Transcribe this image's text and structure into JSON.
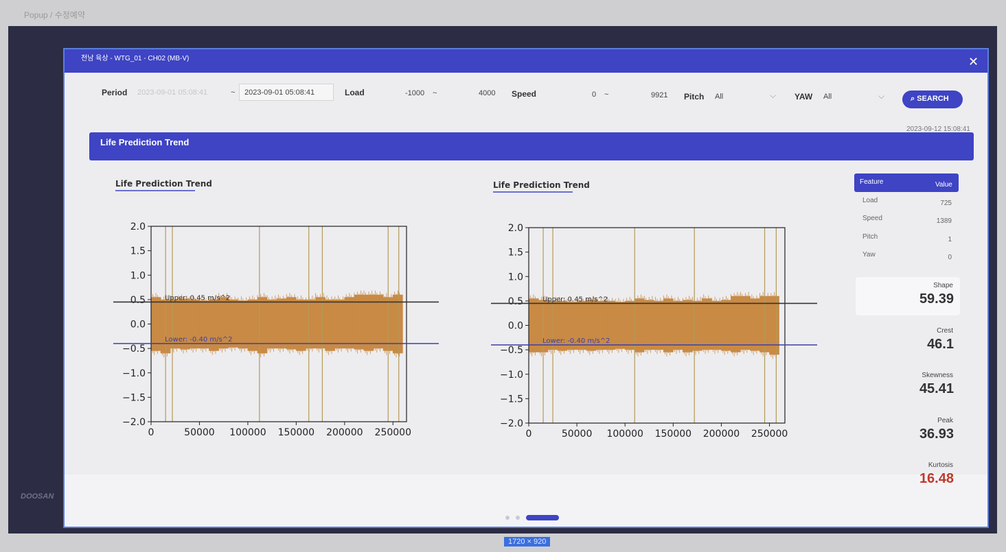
{
  "breadcrumb": "Popup / 수정예약",
  "brand": "DOOSAN",
  "popup": {
    "title": "전남 육상 - WTG_01 - CH02 (MB-V)",
    "size_label": "1720 × 920"
  },
  "filters": {
    "period_label": "Period",
    "period_from": "2023-09-01 05:08:41",
    "period_sep": "~",
    "period_to": "2023-09-01 05:08:41",
    "load_label": "Load",
    "load_min": "-1000",
    "load_sep": "~",
    "load_max": "4000",
    "speed_label": "Speed",
    "speed_min": "0",
    "speed_sep": "~",
    "speed_max": "9921",
    "pitch_label": "Pitch",
    "pitch_value": "All",
    "yaw_label": "YAW",
    "yaw_value": "All",
    "search": "SEARCH"
  },
  "timestamp": "2023-09-12 15:08:41",
  "section_title": "Life Prediction Trend",
  "chart_data": [
    {
      "type": "line",
      "title": "Life Prediction Trend",
      "xlim": [
        0,
        264000
      ],
      "xticks": [
        0,
        50000,
        100000,
        150000,
        200000,
        250000
      ],
      "ylim": [
        -2,
        2
      ],
      "yticks": [
        {
          "value": -2,
          "label": "−2.0"
        },
        {
          "value": -1.5,
          "label": "−1.5"
        },
        {
          "value": -1,
          "label": "−1.0"
        },
        {
          "value": -0.5,
          "label": "−0.5"
        },
        {
          "value": 0,
          "label": "0.0"
        },
        {
          "value": 0.5,
          "label": "0.5"
        },
        {
          "value": 1,
          "label": "1.0"
        },
        {
          "value": 1.5,
          "label": "1.5"
        },
        {
          "value": 2,
          "label": "2.0"
        }
      ],
      "hlines": [
        {
          "value": 0.45,
          "label": "Upper: 0.45 m/s^2",
          "color": "#333333"
        },
        {
          "value": -0.4,
          "label": "Lower: -0.40 m/s^2",
          "color": "#3b3fa8"
        }
      ],
      "signal": {
        "color": "#c98a45",
        "x": [
          5000,
          15000,
          25000,
          35000,
          45000,
          55000,
          65000,
          75000,
          85000,
          95000,
          105000,
          115000,
          125000,
          135000,
          145000,
          155000,
          165000,
          175000,
          185000,
          195000,
          205000,
          215000,
          225000,
          235000,
          245000,
          255000
        ],
        "high": [
          0.55,
          0.5,
          0.5,
          0.52,
          0.5,
          0.48,
          0.5,
          0.55,
          0.5,
          0.48,
          0.5,
          0.55,
          0.5,
          0.52,
          0.55,
          0.5,
          0.5,
          0.55,
          0.5,
          0.5,
          0.55,
          0.6,
          0.6,
          0.6,
          0.55,
          0.6
        ],
        "low": [
          -0.55,
          -0.6,
          -0.5,
          -0.52,
          -0.5,
          -0.5,
          -0.55,
          -0.5,
          -0.48,
          -0.5,
          -0.55,
          -0.6,
          -0.5,
          -0.5,
          -0.52,
          -0.55,
          -0.5,
          -0.5,
          -0.55,
          -0.5,
          -0.5,
          -0.52,
          -0.55,
          -0.5,
          -0.55,
          -0.6
        ]
      },
      "spikes": {
        "color": "#b59a55",
        "x": [
          15000,
          22000,
          112000,
          163000,
          177000,
          245000,
          256000
        ],
        "low": [
          -2,
          -2,
          -2,
          -2,
          -2,
          -2,
          -2
        ],
        "high": [
          2,
          2,
          2,
          2,
          2,
          2,
          2
        ]
      }
    },
    {
      "type": "line",
      "title": "Life Prediction Trend",
      "xlim": [
        0,
        266000
      ],
      "xticks": [
        0,
        50000,
        100000,
        150000,
        200000,
        250000
      ],
      "ylim": [
        -2,
        2
      ],
      "yticks": [
        {
          "value": -2,
          "label": "−2.0"
        },
        {
          "value": -1.5,
          "label": "−1.5"
        },
        {
          "value": -1,
          "label": "−1.0"
        },
        {
          "value": -0.5,
          "label": "−0.5"
        },
        {
          "value": 0,
          "label": "0.0"
        },
        {
          "value": 0.5,
          "label": "0.5"
        },
        {
          "value": 1,
          "label": "1.0"
        },
        {
          "value": 1.5,
          "label": "1.5"
        },
        {
          "value": 2,
          "label": "2.0"
        }
      ],
      "hlines": [
        {
          "value": 0.45,
          "label": "Upper: 0.45 m/s^2",
          "color": "#333333"
        },
        {
          "value": -0.4,
          "label": "Lower: -0.40 m/s^2",
          "color": "#3b3fa8"
        }
      ],
      "signal": {
        "color": "#c98a45",
        "x": [
          5000,
          15000,
          25000,
          35000,
          45000,
          55000,
          65000,
          75000,
          85000,
          95000,
          105000,
          115000,
          125000,
          135000,
          145000,
          155000,
          165000,
          175000,
          185000,
          195000,
          205000,
          215000,
          225000,
          235000,
          245000,
          255000
        ],
        "high": [
          0.55,
          0.52,
          0.5,
          0.5,
          0.48,
          0.5,
          0.52,
          0.5,
          0.5,
          0.48,
          0.5,
          0.55,
          0.52,
          0.5,
          0.55,
          0.5,
          0.52,
          0.5,
          0.55,
          0.5,
          0.52,
          0.6,
          0.6,
          0.55,
          0.6,
          0.6
        ],
        "low": [
          -0.55,
          -0.55,
          -0.5,
          -0.52,
          -0.5,
          -0.5,
          -0.52,
          -0.5,
          -0.5,
          -0.48,
          -0.5,
          -0.55,
          -0.5,
          -0.5,
          -0.55,
          -0.5,
          -0.55,
          -0.52,
          -0.5,
          -0.5,
          -0.52,
          -0.55,
          -0.5,
          -0.52,
          -0.55,
          -0.6
        ]
      },
      "spikes": {
        "color": "#b59a55",
        "x": [
          15000,
          25000,
          110000,
          172000,
          245000,
          257000
        ],
        "low": [
          -2,
          -2,
          -2,
          -2,
          -2,
          -2
        ],
        "high": [
          2,
          2,
          2,
          2,
          2,
          2
        ]
      }
    }
  ],
  "features": {
    "header": [
      "Feature",
      "Value"
    ],
    "rows": [
      [
        "Load",
        "725"
      ],
      [
        "Speed",
        "1389"
      ],
      [
        "Pitch",
        "1"
      ],
      [
        "Yaw",
        "0"
      ]
    ]
  },
  "cards": [
    {
      "label": "Shape",
      "value": "59.39"
    },
    {
      "label": "Crest",
      "value": "46.1"
    },
    {
      "label": "Skewness",
      "value": "45.41"
    },
    {
      "label": "Peak",
      "value": "36.93"
    },
    {
      "label": "Kurtosis",
      "value": "16.48",
      "color": "#c0392b"
    }
  ]
}
